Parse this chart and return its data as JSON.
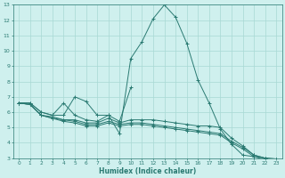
{
  "xlabel": "Humidex (Indice chaleur)",
  "bg_color": "#cff0ee",
  "line_color": "#2a7a72",
  "grid_color": "#a8d8d4",
  "xlim": [
    -0.5,
    23.5
  ],
  "ylim": [
    3,
    13
  ],
  "xtick_labels": [
    "0",
    "1",
    "2",
    "3",
    "4",
    "5",
    "6",
    "7",
    "8",
    "9",
    "10",
    "11",
    "12",
    "13",
    "14",
    "15",
    "16",
    "17",
    "18",
    "19",
    "20",
    "21",
    "22",
    "23"
  ],
  "xtick_vals": [
    0,
    1,
    2,
    3,
    4,
    5,
    6,
    7,
    8,
    9,
    10,
    11,
    12,
    13,
    14,
    15,
    16,
    17,
    18,
    19,
    20,
    21,
    22,
    23
  ],
  "yticks": [
    3,
    4,
    5,
    6,
    7,
    8,
    9,
    10,
    11,
    12,
    13
  ],
  "series": [
    {
      "x": [
        0,
        1,
        2,
        3,
        4,
        5,
        6,
        7,
        8,
        9,
        10,
        11,
        12,
        13,
        14,
        15,
        16,
        17,
        18,
        19,
        20,
        21,
        22,
        23
      ],
      "y": [
        6.6,
        6.6,
        6.0,
        5.8,
        5.8,
        7.0,
        6.7,
        5.8,
        5.8,
        4.6,
        9.5,
        10.6,
        12.1,
        13.0,
        12.2,
        10.5,
        8.1,
        6.6,
        4.9,
        3.9,
        3.2,
        3.1,
        3.0,
        2.95
      ]
    },
    {
      "x": [
        0,
        1,
        2,
        3,
        4,
        5,
        6,
        7,
        8,
        9,
        10
      ],
      "y": [
        6.6,
        6.6,
        6.0,
        5.8,
        6.6,
        5.8,
        5.5,
        5.4,
        5.8,
        5.4,
        7.6
      ]
    },
    {
      "x": [
        0,
        1,
        2,
        3,
        4,
        5,
        6,
        7,
        8,
        9,
        10,
        11,
        12,
        13,
        14,
        15,
        16,
        17,
        18,
        19,
        20,
        21,
        22,
        23
      ],
      "y": [
        6.6,
        6.5,
        5.8,
        5.7,
        5.5,
        5.5,
        5.3,
        5.3,
        5.6,
        5.3,
        5.5,
        5.5,
        5.5,
        5.4,
        5.3,
        5.2,
        5.1,
        5.1,
        5.0,
        4.3,
        3.8,
        3.2,
        3.0,
        2.95
      ]
    },
    {
      "x": [
        0,
        1,
        2,
        3,
        4,
        5,
        6,
        7,
        8,
        9,
        10,
        11,
        12,
        13,
        14,
        15,
        16,
        17,
        18,
        19,
        20,
        21,
        22,
        23
      ],
      "y": [
        6.6,
        6.5,
        5.8,
        5.6,
        5.5,
        5.4,
        5.2,
        5.2,
        5.4,
        5.2,
        5.3,
        5.3,
        5.2,
        5.1,
        5.0,
        4.9,
        4.8,
        4.7,
        4.6,
        4.1,
        3.7,
        3.2,
        3.0,
        2.9
      ]
    },
    {
      "x": [
        0,
        1,
        2,
        3,
        4,
        5,
        6,
        7,
        8,
        9,
        10,
        11,
        12,
        13,
        14,
        15,
        16,
        17,
        18,
        19,
        20,
        21,
        22,
        23
      ],
      "y": [
        6.6,
        6.5,
        5.8,
        5.6,
        5.4,
        5.3,
        5.1,
        5.1,
        5.3,
        5.1,
        5.2,
        5.2,
        5.1,
        5.0,
        4.9,
        4.8,
        4.7,
        4.6,
        4.5,
        4.0,
        3.6,
        3.1,
        2.9,
        2.85
      ]
    }
  ]
}
